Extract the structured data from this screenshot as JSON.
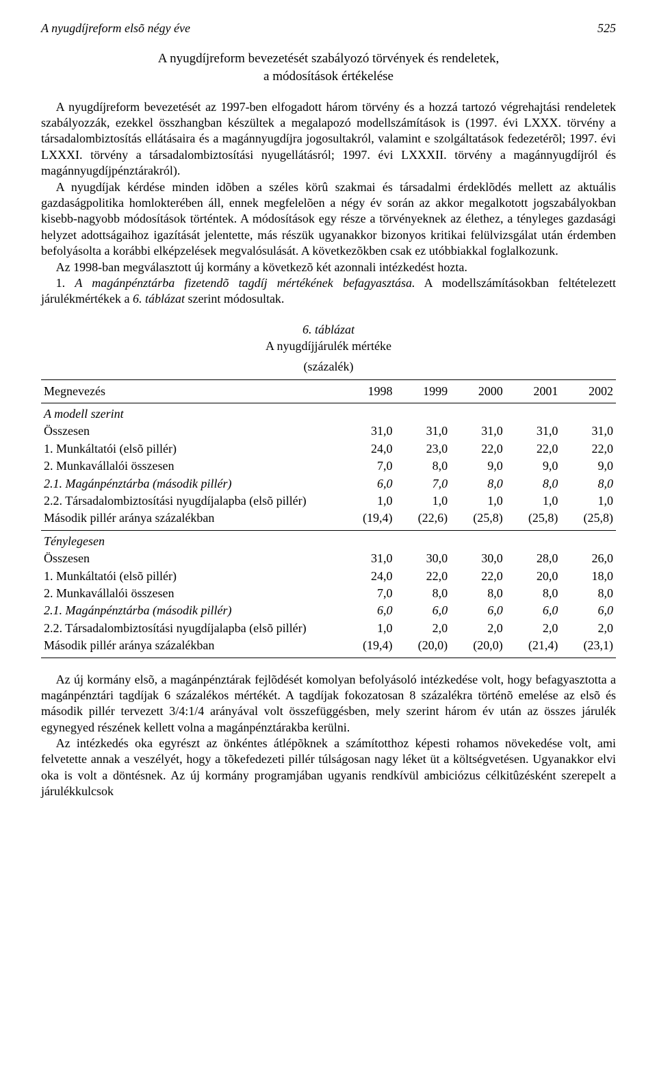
{
  "header": {
    "running_title": "A nyugdíjreform elsõ négy éve",
    "page_number": "525"
  },
  "section_title_line1": "A nyugdíjreform bevezetését szabályozó törvények és rendeletek,",
  "section_title_line2": "a módosítások értékelése",
  "para1": "A nyugdíjreform bevezetését az 1997-ben elfogadott három törvény és a hozzá tartozó végrehajtási rendeletek szabályozzák, ezekkel összhangban készültek a megalapozó modellszámítások is (1997. évi LXXX. törvény a társadalombiztosítás ellátásaira és a magánnyugdíjra jogosultakról, valamint e szolgáltatások fedezetérõl; 1997. évi LXXXI. törvény a társadalombiztosítási nyugellátásról; 1997. évi LXXXII. törvény a magánnyugdíjról és magánnyugdíjpénztárakról).",
  "para2": "A nyugdíjak kérdése minden idõben a széles körû szakmai és társadalmi érdeklõdés mellett az aktuális gazdaságpolitika homlokterében áll, ennek megfelelõen a négy év során az akkor megalkotott jogszabályokban kisebb-nagyobb módosítások történtek. A módosítások egy része a törvényeknek az élethez, a tényleges gazdasági helyzet adottságaihoz igazítását jelentette, más részük ugyanakkor bizonyos kritikai felülvizsgálat után érdemben befolyásolta a korábbi elképzelések megvalósulását. A következõkben csak ez utóbbiakkal foglalkozunk.",
  "para3": "Az 1998-ban megválasztott új kormány a következõ két azonnali intézkedést hozta.",
  "para4_part1": "1. ",
  "para4_italic": "A magánpénztárba fizetendõ tagdíj mértékének befagyasztása.",
  "para4_part2": " A modellszámításokban feltételezett járulékmértékek a ",
  "para4_italic2": "6. táblázat",
  "para4_part3": " szerint módosultak.",
  "table": {
    "caption": "6. táblázat",
    "subtitle": "A nyugdíjjárulék mértéke",
    "unit": "(százalék)",
    "header_label": "Megnevezés",
    "years": [
      "1998",
      "1999",
      "2000",
      "2001",
      "2002"
    ],
    "section_a_title": "A modell szerint",
    "section_b_title": "Ténylegesen",
    "rows": [
      {
        "label": "Összesen",
        "vals": [
          "31,0",
          "31,0",
          "31,0",
          "31,0",
          "31,0"
        ],
        "italic": false
      },
      {
        "label": "1. Munkáltatói (elsõ pillér)",
        "vals": [
          "24,0",
          "23,0",
          "22,0",
          "22,0",
          "22,0"
        ],
        "italic": false
      },
      {
        "label": "2. Munkavállalói összesen",
        "vals": [
          "7,0",
          "8,0",
          "9,0",
          "9,0",
          "9,0"
        ],
        "italic": false
      },
      {
        "label": "2.1. Magánpénztárba (második pillér)",
        "vals": [
          "6,0",
          "7,0",
          "8,0",
          "8,0",
          "8,0"
        ],
        "italic": true
      },
      {
        "label": "2.2. Társadalombiztosítási nyugdíjalapba (elsõ pillér)",
        "vals": [
          "1,0",
          "1,0",
          "1,0",
          "1,0",
          "1,0"
        ],
        "italic": false
      },
      {
        "label": "Második pillér aránya százalékban",
        "vals": [
          "(19,4)",
          "(22,6)",
          "(25,8)",
          "(25,8)",
          "(25,8)"
        ],
        "italic": false
      }
    ],
    "rows_b": [
      {
        "label": "Összesen",
        "vals": [
          "31,0",
          "30,0",
          "30,0",
          "28,0",
          "26,0"
        ],
        "italic": false
      },
      {
        "label": "1. Munkáltatói (elsõ pillér)",
        "vals": [
          "24,0",
          "22,0",
          "22,0",
          "20,0",
          "18,0"
        ],
        "italic": false
      },
      {
        "label": "2. Munkavállalói összesen",
        "vals": [
          "7,0",
          "8,0",
          "8,0",
          "8,0",
          "8,0"
        ],
        "italic": false
      },
      {
        "label": "2.1. Magánpénztárba (második pillér)",
        "vals": [
          "6,0",
          "6,0",
          "6,0",
          "6,0",
          "6,0"
        ],
        "italic": true
      },
      {
        "label": "2.2. Társadalombiztosítási nyugdíjalapba (elsõ pillér)",
        "vals": [
          "1,0",
          "2,0",
          "2,0",
          "2,0",
          "2,0"
        ],
        "italic": false
      },
      {
        "label": "Második pillér aránya százalékban",
        "vals": [
          "(19,4)",
          "(20,0)",
          "(20,0)",
          "(21,4)",
          "(23,1)"
        ],
        "italic": false
      }
    ]
  },
  "para5": "Az új kormány elsõ, a magánpénztárak fejlõdését komolyan befolyásoló intézkedése volt, hogy befagyasztotta a magánpénztári tagdíjak 6 százalékos mértékét. A tagdíjak fokozatosan 8 százalékra történõ emelése az elsõ és második pillér tervezett 3/4:1/4 arányával volt összefüggésben, mely szerint három év után az összes járulék egynegyed részének kellett volna a magánpénztárakba kerülni.",
  "para6": "Az intézkedés oka egyrészt az önkéntes átlépõknek a számítotthoz képesti rohamos növekedése volt, ami felvetette annak a veszélyét, hogy a tõkefedezeti pillér túlságosan nagy léket üt a költségvetésen. Ugyanakkor elvi oka is volt a döntésnek. Az új kormány programjában ugyanis rendkívül ambiciózus célkitûzésként szerepelt a járulékkulcsok"
}
